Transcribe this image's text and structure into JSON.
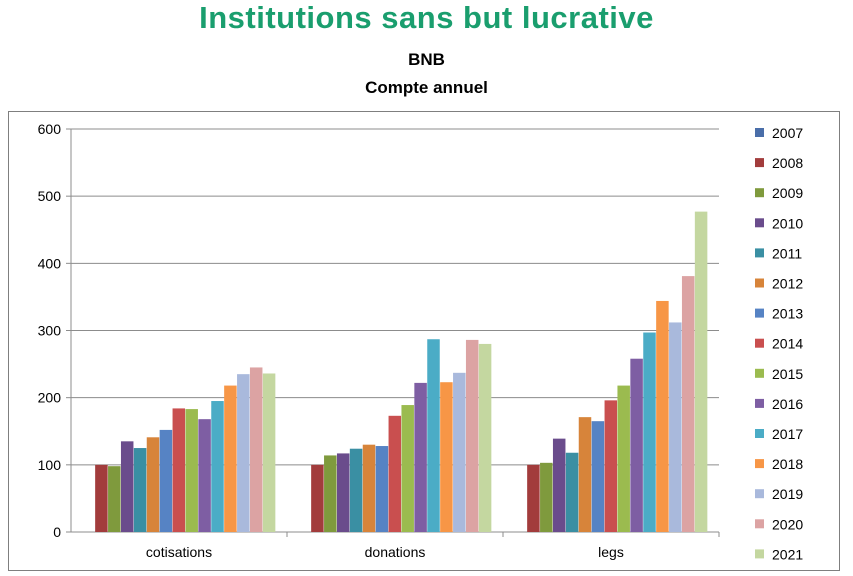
{
  "header": {
    "title": "Institutions sans but lucrative",
    "subtitle1": "BNB",
    "subtitle2": "Compte annuel"
  },
  "chart_data": {
    "type": "bar",
    "title": "Institutions sans but lucrative",
    "subtitle": "BNB — Compte annuel",
    "categories": [
      "cotisations",
      "donations",
      "legs"
    ],
    "ylim": [
      0,
      600
    ],
    "yticks": [
      0,
      100,
      200,
      300,
      400,
      500,
      600
    ],
    "grid": true,
    "legend_position": "right",
    "series": [
      {
        "name": "2007",
        "color": "#4a6ea9",
        "values": [
          null,
          null,
          null
        ]
      },
      {
        "name": "2008",
        "color": "#a23c3c",
        "values": [
          100,
          100,
          100
        ]
      },
      {
        "name": "2009",
        "color": "#7f9a3d",
        "values": [
          98,
          114,
          103
        ]
      },
      {
        "name": "2010",
        "color": "#6a4c8c",
        "values": [
          135,
          117,
          139
        ]
      },
      {
        "name": "2011",
        "color": "#3a8fa3",
        "values": [
          125,
          124,
          118
        ]
      },
      {
        "name": "2012",
        "color": "#d7843a",
        "values": [
          141,
          130,
          171
        ]
      },
      {
        "name": "2013",
        "color": "#5683c4",
        "values": [
          152,
          128,
          165
        ]
      },
      {
        "name": "2014",
        "color": "#c94f4f",
        "values": [
          184,
          173,
          196
        ]
      },
      {
        "name": "2015",
        "color": "#9bbb4f",
        "values": [
          183,
          189,
          218
        ]
      },
      {
        "name": "2016",
        "color": "#7e5ea3",
        "values": [
          168,
          222,
          258
        ]
      },
      {
        "name": "2017",
        "color": "#4bacc6",
        "values": [
          195,
          287,
          297
        ]
      },
      {
        "name": "2018",
        "color": "#f79646",
        "values": [
          218,
          223,
          344
        ]
      },
      {
        "name": "2019",
        "color": "#a9b9dc",
        "values": [
          235,
          237,
          312
        ]
      },
      {
        "name": "2020",
        "color": "#dca3a3",
        "values": [
          245,
          286,
          381
        ]
      },
      {
        "name": "2021",
        "color": "#c4d7a0",
        "values": [
          236,
          280,
          477
        ]
      }
    ]
  }
}
